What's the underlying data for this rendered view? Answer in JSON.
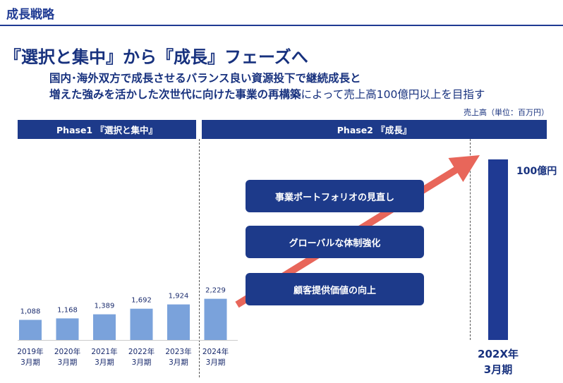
{
  "header": {
    "title": "成長戦略"
  },
  "headline": "『選択と集中』から『成長』フェーズへ",
  "subtitle": {
    "line1": "国内･海外双方で成長させるバランス良い資源投下で継続成長と",
    "line2_bold": "増えた強みを活かした次世代に向けた事業の再構築",
    "line2_rest": "によって売上高100億円以上を目指す"
  },
  "unit_label": "売上高（単位：百万円）",
  "phases": [
    {
      "label": "Phase1 『選択と集中』"
    },
    {
      "label": "Phase2 『成長』"
    }
  ],
  "initiatives": [
    "事業ポートフォリオの見直し",
    "グローバルな体制強化",
    "顧客提供価値の向上"
  ],
  "target": {
    "label_line1": "202X年",
    "label_line2": "3月期",
    "value_label": "100億円"
  },
  "colors": {
    "bar": "#7aa2db",
    "target_bar": "#1f3a93",
    "arrow": "#e8665a",
    "navy": "#1d3a8a"
  },
  "chart_data": {
    "type": "bar",
    "categories": [
      [
        "2019年",
        "3月期"
      ],
      [
        "2020年",
        "3月期"
      ],
      [
        "2021年",
        "3月期"
      ],
      [
        "2022年",
        "3月期"
      ],
      [
        "2023年",
        "3月期"
      ],
      [
        "2024年",
        "3月期"
      ]
    ],
    "values": [
      1088,
      1168,
      1389,
      1692,
      1924,
      2229
    ],
    "value_labels": [
      "1,088",
      "1,168",
      "1,389",
      "1,692",
      "1,924",
      "2,229"
    ],
    "target_value": 10000,
    "ylim": [
      0,
      10000
    ]
  }
}
